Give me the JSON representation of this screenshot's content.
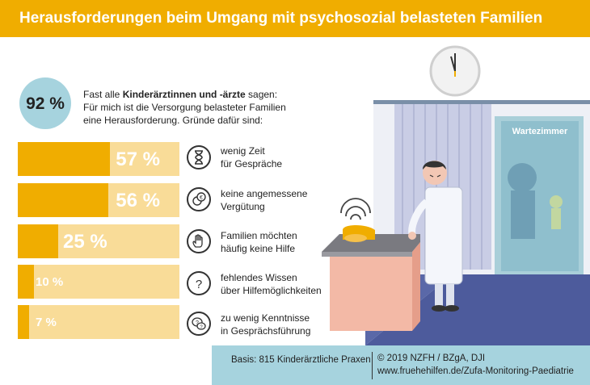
{
  "header": {
    "title": "Herausforderungen beim Umgang mit psychosozial belasteten Familien"
  },
  "intro": {
    "percent": "92 %",
    "line1_prefix": "Fast alle ",
    "line1_bold": "Kinderärztinnen und -ärzte",
    "line1_suffix": " sagen:",
    "line2": "Für mich ist die Versorgung belasteter Familien",
    "line3": "eine Herausforderung. Gründe dafür sind:"
  },
  "chart_data": {
    "type": "bar",
    "categories": [
      "wenig Zeit für Gespräche",
      "keine angemessene Vergütung",
      "Familien möchten häufig keine Hilfe",
      "fehlendes Wissen über Hilfemöglichkeiten",
      "zu wenig Kenntnisse in Gesprächsführung"
    ],
    "values": [
      57,
      56,
      25,
      10,
      7
    ],
    "value_labels": [
      "57 %",
      "56 %",
      "25 %",
      "10 %",
      "7 %"
    ],
    "title": "",
    "xlabel": "",
    "ylabel": "",
    "ylim": [
      0,
      100
    ]
  },
  "reasons": [
    {
      "line1": "wenig Zeit",
      "line2": "für Gespräche",
      "icon": "hourglass-icon"
    },
    {
      "line1": "keine angemessene",
      "line2": "Vergütung",
      "icon": "euro-coin-icon"
    },
    {
      "line1": "Familien möchten",
      "line2": "häufig keine Hilfe",
      "icon": "stop-hand-icon"
    },
    {
      "line1": "fehlendes Wissen",
      "line2": "über Hilfemöglichkeiten",
      "icon": "question-mark-icon"
    },
    {
      "line1": "zu wenig Kenntnisse",
      "line2": "in Gesprächsführung",
      "icon": "speech-bubbles-icon"
    }
  ],
  "illustration": {
    "door_sign": "Wartezimmer",
    "colors": {
      "accent": "#f0ad00",
      "accent_light": "#f9dc98",
      "teal": "#a6d3de"
    }
  },
  "footer": {
    "basis": "Basis: 815 Kinderärztliche Praxen",
    "copyright": "© 2019 NZFH / BZgA, DJI",
    "url": "www.fruehehilfen.de/Zufa-Monitoring-Paediatrie"
  }
}
